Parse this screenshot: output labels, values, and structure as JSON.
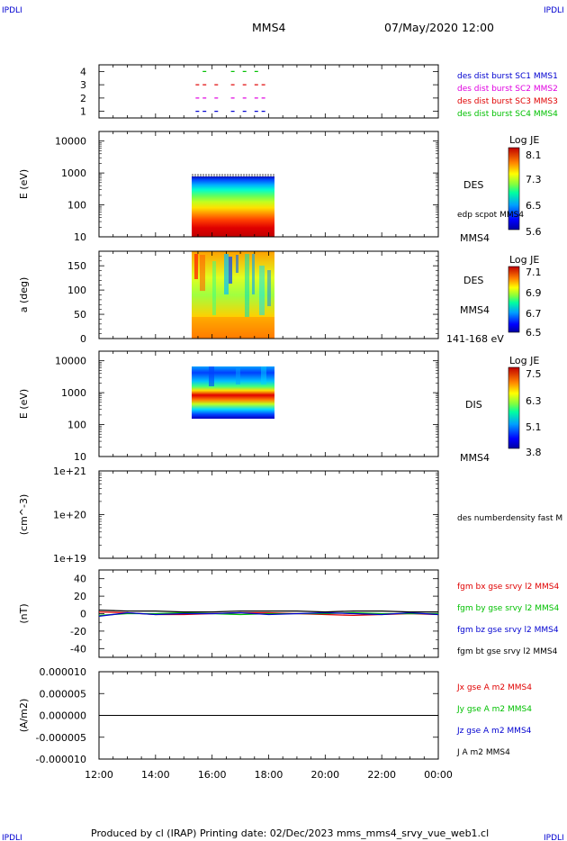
{
  "corner_labels": {
    "tl": "IPDLI",
    "tr": "IPDLI",
    "bl": "IPDLI",
    "br": "IPDLI"
  },
  "header": {
    "spacecraft": "MMS4",
    "datetime": "07/May/2020 12:00"
  },
  "footer": "Produced by cl (IRAP)   Printing date: 02/Dec/2023   mms_mms4_srvy_vue_web1.cl",
  "colors": {
    "red": "#e00000",
    "green": "#00c000",
    "blue": "#0000d0",
    "magenta": "#e000e0",
    "black": "#000000"
  },
  "chart_data": [
    {
      "type": "scatter",
      "name": "burst availability",
      "ylim": [
        0.5,
        4.5
      ],
      "yticks": [
        1,
        2,
        3,
        4
      ],
      "xlim": [
        "12:00",
        "00:00"
      ],
      "series": [
        {
          "name": "des dist burst SC1 MMS1",
          "y": 1,
          "color": "#0000d0",
          "x": [
            "15:25",
            "15:40",
            "16:05",
            "16:40",
            "17:05",
            "17:30",
            "17:45"
          ]
        },
        {
          "name": "des dist burst SC2 MMS2",
          "y": 2,
          "color": "#e000e0",
          "x": [
            "15:25",
            "15:40",
            "16:05",
            "16:40",
            "17:05",
            "17:30",
            "17:45"
          ]
        },
        {
          "name": "des dist burst SC3 MMS3",
          "y": 3,
          "color": "#e00000",
          "x": [
            "15:25",
            "15:40",
            "16:05",
            "16:40",
            "17:05",
            "17:30",
            "17:45"
          ]
        },
        {
          "name": "des dist burst SC4 MMS4",
          "y": 4,
          "color": "#00c000",
          "x": [
            "15:40",
            "16:40",
            "17:05",
            "17:30"
          ]
        }
      ]
    },
    {
      "type": "heatmap",
      "ylabel": "E (eV)",
      "yscale": "log",
      "ylim": [
        10,
        20000
      ],
      "yticks": [
        "10",
        "100",
        "1000",
        "10000"
      ],
      "label": "DES",
      "extra_label": "edp scpot MMS4",
      "spacecraft_label": "MMS4",
      "colorbar": {
        "title": "Log JE",
        "ticks": [
          "8.1",
          "7.3",
          "6.5",
          "5.6"
        ]
      },
      "data_interval": [
        "15:20",
        "18:20"
      ],
      "energy_range": [
        10,
        1000
      ]
    },
    {
      "type": "heatmap",
      "ylabel": "a (deg)",
      "ylim": [
        0,
        180
      ],
      "yticks": [
        "0",
        "50",
        "100",
        "150"
      ],
      "label": "DES",
      "spacecraft_label": "MMS4",
      "energy_label": "141-168 eV",
      "colorbar": {
        "title": "Log JE",
        "ticks": [
          "7.1",
          "6.9",
          "6.7",
          "6.5"
        ]
      },
      "data_interval": [
        "15:20",
        "18:20"
      ]
    },
    {
      "type": "heatmap",
      "ylabel": "E (eV)",
      "yscale": "log",
      "ylim": [
        10,
        20000
      ],
      "yticks": [
        "10",
        "100",
        "1000",
        "10000"
      ],
      "label": "DIS",
      "spacecraft_label": "MMS4",
      "colorbar": {
        "title": "Log JE",
        "ticks": [
          "7.5",
          "6.3",
          "5.1",
          "3.8"
        ]
      },
      "data_interval": [
        "15:20",
        "18:20"
      ],
      "energy_range": [
        200,
        10000
      ]
    },
    {
      "type": "line",
      "ylabel": "(cm^-3)",
      "yscale": "log",
      "ylim": [
        1e+19,
        1e+21
      ],
      "yticks": [
        "1e+21",
        "1e+20",
        "1e+19"
      ],
      "series": [
        {
          "name": "des numberdensity fast M",
          "color": "#000000",
          "values": []
        }
      ]
    },
    {
      "type": "line",
      "ylabel": "(nT)",
      "ylim": [
        -50,
        50
      ],
      "yticks": [
        "40",
        "20",
        "0",
        "-20",
        "-40"
      ],
      "x": [
        "12:00",
        "13:00",
        "14:00",
        "15:00",
        "16:00",
        "17:00",
        "18:00",
        "19:00",
        "20:00",
        "21:00",
        "22:00",
        "23:00",
        "00:00"
      ],
      "series": [
        {
          "name": "fgm bx gse srvy l2 MMS4",
          "color": "#e00000",
          "values": [
            2,
            1,
            -1,
            -1,
            0,
            1,
            1,
            0,
            -1,
            -2,
            -1,
            0,
            -1
          ]
        },
        {
          "name": "fgm by gse srvy l2 MMS4",
          "color": "#00c000",
          "values": [
            -2,
            0,
            0,
            1,
            0,
            -1,
            0,
            0,
            0,
            1,
            0,
            0,
            0
          ]
        },
        {
          "name": "fgm bz gse srvy l2 MMS4",
          "color": "#0000d0",
          "values": [
            -3,
            1,
            -1,
            0,
            0,
            1,
            -1,
            0,
            1,
            0,
            -1,
            1,
            -1
          ]
        },
        {
          "name": "fgm bt gse srvy l2 MMS4",
          "color": "#000000",
          "values": [
            4,
            3,
            3,
            2,
            2,
            3,
            3,
            3,
            2,
            3,
            3,
            2,
            2
          ]
        }
      ]
    },
    {
      "type": "line",
      "ylabel": "(A/m2)",
      "ylim": [
        -1e-05,
        1e-05
      ],
      "yticks": [
        "0.000010",
        "0.000005",
        "0.000000",
        "-0.000005",
        "-0.000010"
      ],
      "xticks": [
        "12:00",
        "14:00",
        "16:00",
        "18:00",
        "20:00",
        "22:00",
        "00:00"
      ],
      "series": [
        {
          "name": "Jx gse A m2 MMS4",
          "color": "#e00000",
          "values": []
        },
        {
          "name": "Jy gse A m2 MMS4",
          "color": "#00c000",
          "values": []
        },
        {
          "name": "Jz gse A m2 MMS4",
          "color": "#0000d0",
          "values": []
        },
        {
          "name": "J A m2 MMS4",
          "color": "#000000",
          "values": [
            0,
            0,
            0,
            0,
            0,
            0,
            0,
            0,
            0,
            0,
            0,
            0,
            0
          ]
        }
      ]
    }
  ]
}
